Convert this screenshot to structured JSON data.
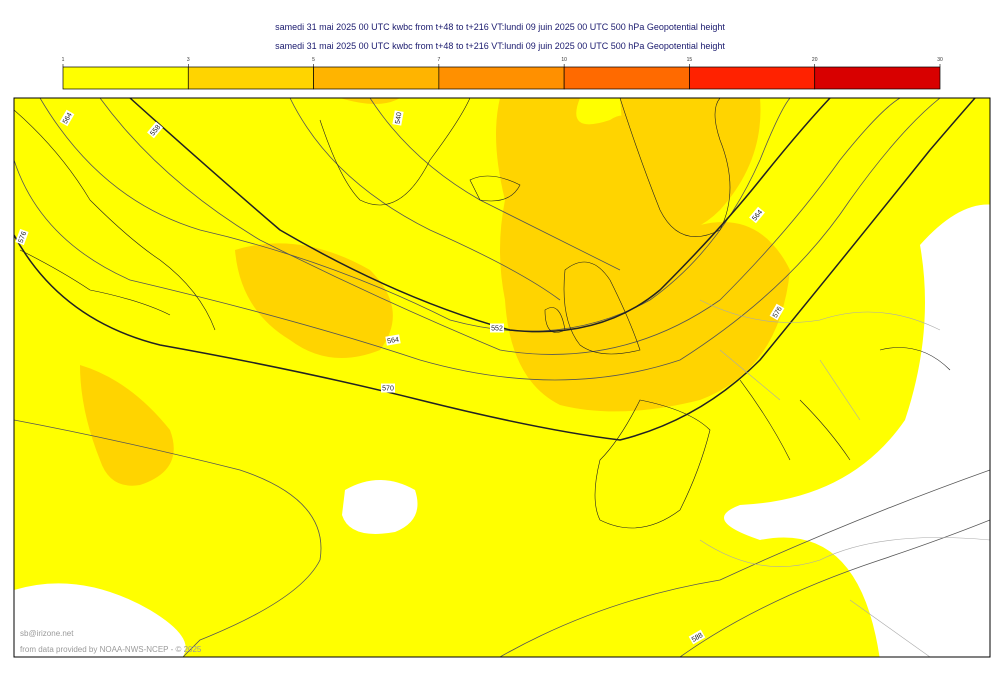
{
  "header": {
    "lines": [
      "samedi 31 mai 2025 00 UTC kwbc from t+48 to t+216 VT:lundi 09 juin 2025 00 UTC 500 hPa  Geopotential height",
      "samedi 31 mai 2025 00 UTC kwbc from t+48 to t+216 VT:lundi 09 juin 2025 00 UTC 500 hPa  Geopotential height"
    ]
  },
  "colorbar": {
    "ticks": [
      1,
      3,
      5,
      7,
      10,
      15,
      20,
      30
    ],
    "colors": [
      "#ffff00",
      "#ffd400",
      "#ffb400",
      "#ff9000",
      "#ff6a00",
      "#ff2200",
      "#d80000"
    ]
  },
  "map": {
    "contour_labels": [
      564,
      558,
      540,
      576,
      552,
      564,
      570,
      564,
      576,
      588
    ]
  },
  "footer": {
    "credit": "sb@irizone.net",
    "source": "from data provided by NOAA-NWS-NCEP - © 2025"
  }
}
